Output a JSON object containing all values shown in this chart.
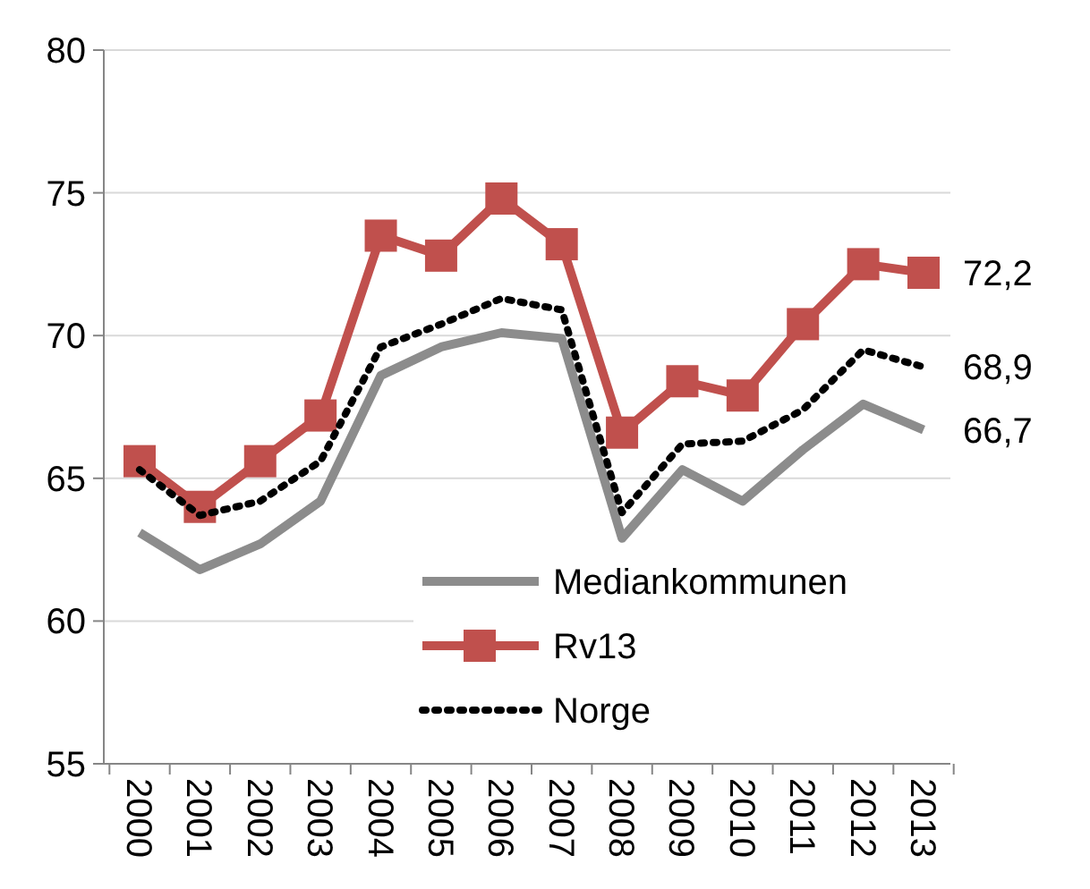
{
  "chart_data": {
    "type": "line",
    "categories": [
      "2000",
      "2001",
      "2002",
      "2003",
      "2004",
      "2005",
      "2006",
      "2007",
      "2008",
      "2009",
      "2010",
      "2011",
      "2012",
      "2013"
    ],
    "series": [
      {
        "name": "Mediankommunen",
        "color": "#8c8c8c",
        "marker": "none",
        "line_style": "solid",
        "values": [
          63.1,
          61.8,
          62.7,
          64.2,
          68.6,
          69.6,
          70.1,
          69.9,
          62.9,
          65.3,
          64.2,
          66.0,
          67.6,
          66.7
        ]
      },
      {
        "name": "Rv13",
        "color": "#c0504d",
        "marker": "square",
        "line_style": "solid",
        "values": [
          65.6,
          64.0,
          65.6,
          67.2,
          73.5,
          72.8,
          74.8,
          73.2,
          66.6,
          68.4,
          67.9,
          70.4,
          72.5,
          72.2
        ]
      },
      {
        "name": "Norge",
        "color": "#000000",
        "marker": "none",
        "line_style": "dotted",
        "values": [
          65.3,
          63.7,
          64.2,
          65.6,
          69.6,
          70.4,
          71.3,
          70.9,
          63.8,
          66.2,
          66.3,
          67.4,
          69.5,
          68.9
        ]
      }
    ],
    "ylim": [
      55,
      80
    ],
    "yticks": [
      55,
      60,
      65,
      70,
      75,
      80
    ],
    "grid": "y",
    "legend": "bottom right",
    "annotations": [
      {
        "text": "72,2",
        "x": "2013",
        "y": 72.2
      },
      {
        "text": "68,9",
        "x": "2013",
        "y": 68.9
      },
      {
        "text": "66,7",
        "x": "2013",
        "y": 66.7
      }
    ]
  }
}
